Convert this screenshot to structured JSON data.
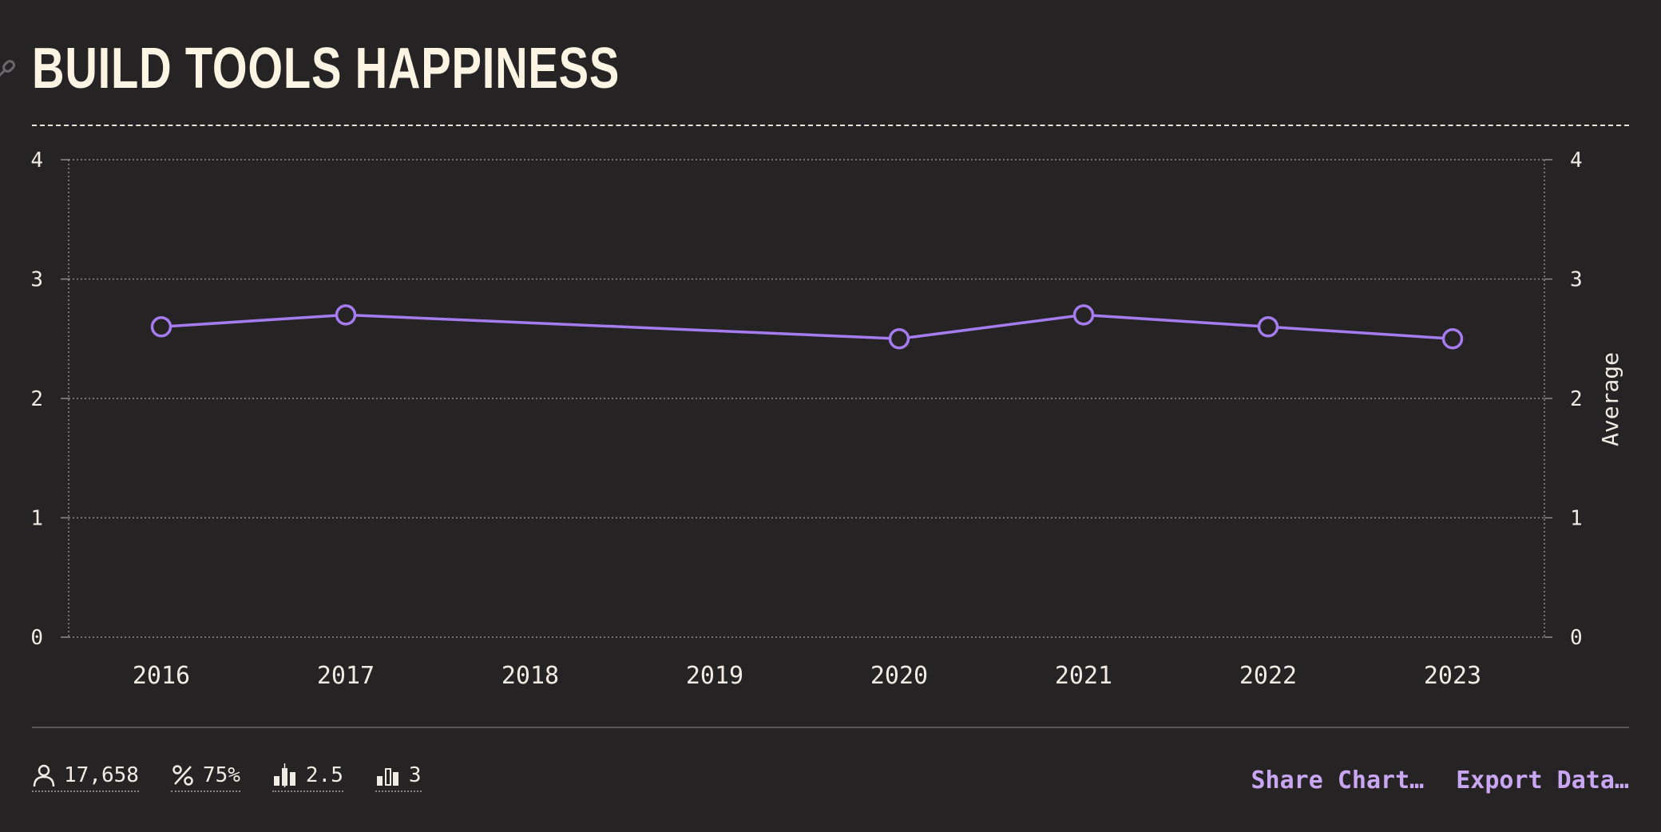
{
  "title": "BUILD TOOLS HAPPINESS",
  "chart_data": {
    "type": "line",
    "x": [
      "2016",
      "2017",
      "2018",
      "2019",
      "2020",
      "2021",
      "2022",
      "2023"
    ],
    "series": [
      {
        "values": [
          2.6,
          2.7,
          null,
          null,
          2.5,
          2.7,
          2.6,
          2.5
        ],
        "color": "#a57cf0"
      }
    ],
    "ylim": [
      0,
      4
    ],
    "yticks": [
      0,
      1,
      2,
      3,
      4
    ],
    "ylabel_right": "Average",
    "grid": true
  },
  "stats": [
    {
      "icon": "user-icon",
      "value": "17,658"
    },
    {
      "icon": "percent-icon",
      "value": "75%"
    },
    {
      "icon": "average-bars-icon",
      "value": "2.5"
    },
    {
      "icon": "median-bars-icon",
      "value": "3"
    }
  ],
  "actions": {
    "share": "Share Chart…",
    "export": "Export Data…"
  },
  "colors": {
    "background": "#262325",
    "title": "#fdf4e3",
    "line": "#a57cf0",
    "accent": "#c9a6f2"
  }
}
